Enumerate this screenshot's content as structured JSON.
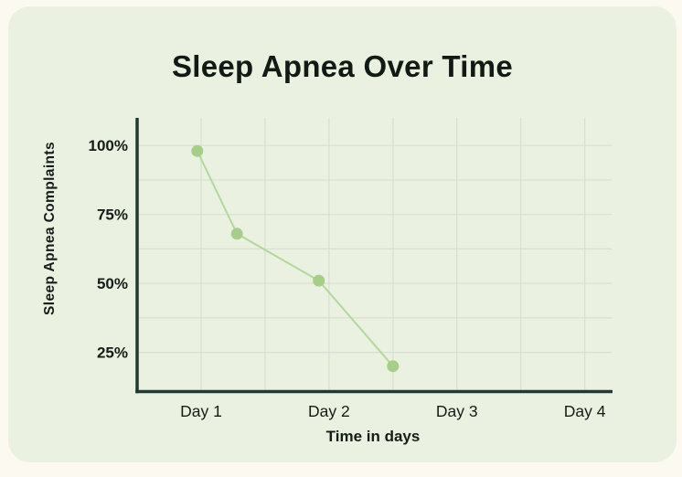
{
  "page": {
    "background_color": "#fcf9f0",
    "card_background_color": "#eaf1e1"
  },
  "chart_data": {
    "type": "line",
    "title": "Sleep Apnea Over Time",
    "xlabel": "Time in days",
    "ylabel": "Sleep Apnea Complaints",
    "x_unit": "days",
    "series": [
      {
        "name": "Sleep Apnea Complaints",
        "points": [
          {
            "x": 0.97,
            "y": 98
          },
          {
            "x": 1.28,
            "y": 68
          },
          {
            "x": 1.92,
            "y": 51
          },
          {
            "x": 2.5,
            "y": 20
          }
        ]
      }
    ],
    "xlim": [
      0.51,
      4.21
    ],
    "ylim": [
      10.8,
      110
    ],
    "x_ticks": [
      {
        "value": 1,
        "label": "Day 1"
      },
      {
        "value": 2,
        "label": "Day 2"
      },
      {
        "value": 3,
        "label": "Day 3"
      },
      {
        "value": 4,
        "label": "Day 4"
      }
    ],
    "y_ticks": [
      {
        "value": 100,
        "label": "100%"
      },
      {
        "value": 75,
        "label": "75%"
      },
      {
        "value": 50,
        "label": "50%"
      },
      {
        "value": 25,
        "label": "25%"
      }
    ],
    "x_gridlines": [
      1,
      1.5,
      2,
      2.5,
      3,
      3.5,
      4
    ],
    "y_gridlines": [
      25,
      37.5,
      50,
      62.5,
      75,
      87.5,
      100
    ],
    "grid": true,
    "legend": false,
    "colors": {
      "line": "#b3d79c",
      "marker": "#a6ce88",
      "axis": "#1e3a33",
      "grid": "#d8dfd2",
      "text": "#141d17"
    }
  }
}
